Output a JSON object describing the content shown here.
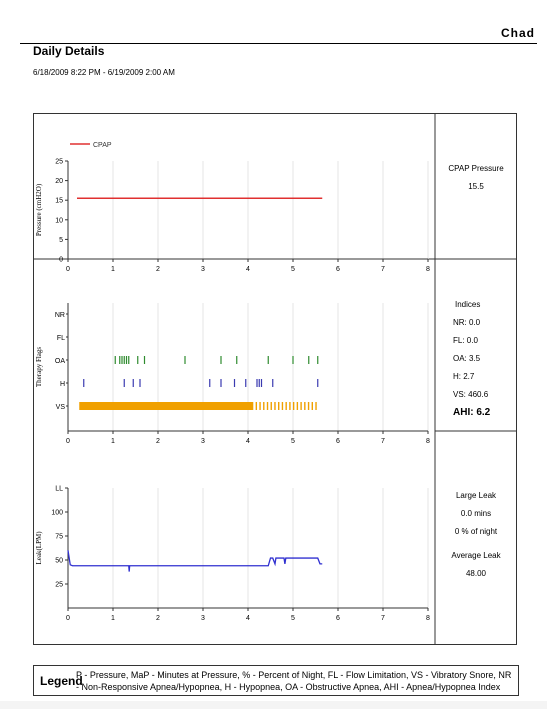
{
  "header": {
    "user": "Chad",
    "title": "Daily Details",
    "date_range": "6/18/2009 8:22 PM - 6/19/2009 2:00 AM"
  },
  "side_panels": {
    "pressure": {
      "label": "CPAP Pressure",
      "value": "15.5"
    },
    "indices": {
      "title": "Indices",
      "rows": [
        "NR: 0.0",
        "FL: 0.0",
        "OA: 3.5",
        "H: 2.7",
        "VS: 460.6"
      ],
      "ahi_label": "AHI:",
      "ahi_value": "6.2"
    },
    "leak": {
      "large_label": "Large Leak",
      "mins": "0.0 mins",
      "pct": "0 % of night",
      "avg_label": "Average Leak",
      "avg_value": "48.00"
    }
  },
  "legend": {
    "title": "Legend",
    "text": "P - Pressure, MaP - Minutes at Pressure, % - Percent of Night, FL - Flow Limitation, VS - Vibratory Snore, NR - Non-Responsive Apnea/Hypopnea, H - Hypopnea, OA - Obstructive Apnea, AHI - Apnea/Hypopnea Index"
  },
  "colors": {
    "pressure": "#e03030",
    "oa": "#2e8b2e",
    "h": "#3a3ab0",
    "vs": "#f0a000",
    "leak": "#3030d0"
  },
  "chart_data": [
    {
      "type": "line",
      "ylabel": "Pressure (cmH2O)",
      "xlim": [
        0,
        8
      ],
      "ylim": [
        0,
        25
      ],
      "xticks": [
        "0",
        "1",
        "2",
        "3",
        "4",
        "5",
        "6",
        "7",
        "8"
      ],
      "yticks": [
        "0",
        "5",
        "10",
        "15",
        "20",
        "25"
      ],
      "legend": [
        "CPAP"
      ],
      "series": [
        {
          "name": "CPAP",
          "x": [
            0.2,
            5.65
          ],
          "y": [
            15.5,
            15.5
          ]
        }
      ]
    },
    {
      "type": "scatter",
      "ylabel": "Therapy Flags",
      "xlim": [
        0,
        8
      ],
      "xticks": [
        "0",
        "1",
        "2",
        "3",
        "4",
        "5",
        "6",
        "7",
        "8"
      ],
      "categories": [
        "NR",
        "FL",
        "OA",
        "H",
        "VS"
      ],
      "events": {
        "NR": [],
        "FL": [],
        "OA": [
          1.05,
          1.15,
          1.2,
          1.25,
          1.3,
          1.35,
          1.55,
          1.7,
          2.6,
          3.4,
          3.75,
          4.45,
          5.0,
          5.35,
          5.55
        ],
        "H": [
          0.35,
          1.25,
          1.45,
          1.6,
          3.15,
          3.4,
          3.7,
          3.95,
          4.2,
          4.25,
          4.3,
          4.55,
          5.55
        ],
        "VS_range": [
          0.25,
          5.6
        ]
      }
    },
    {
      "type": "line",
      "ylabel": "Leak(LPM)",
      "xlim": [
        0,
        8
      ],
      "ylim": [
        0,
        125
      ],
      "xticks": [
        "0",
        "1",
        "2",
        "3",
        "4",
        "5",
        "6",
        "7",
        "8"
      ],
      "yticks": [
        "25",
        "50",
        "75",
        "100",
        "LL"
      ],
      "series": [
        {
          "name": "Leak",
          "x": [
            0.0,
            0.05,
            0.1,
            0.2,
            1.35,
            1.36,
            1.37,
            4.45,
            4.5,
            4.55,
            4.6,
            4.62,
            4.65,
            4.8,
            4.82,
            4.84,
            5.55,
            5.6,
            5.65
          ],
          "y": [
            60,
            45,
            44,
            44,
            44,
            38,
            44,
            44,
            52,
            52,
            46,
            52,
            52,
            52,
            46,
            52,
            52,
            46,
            46
          ]
        }
      ]
    }
  ]
}
